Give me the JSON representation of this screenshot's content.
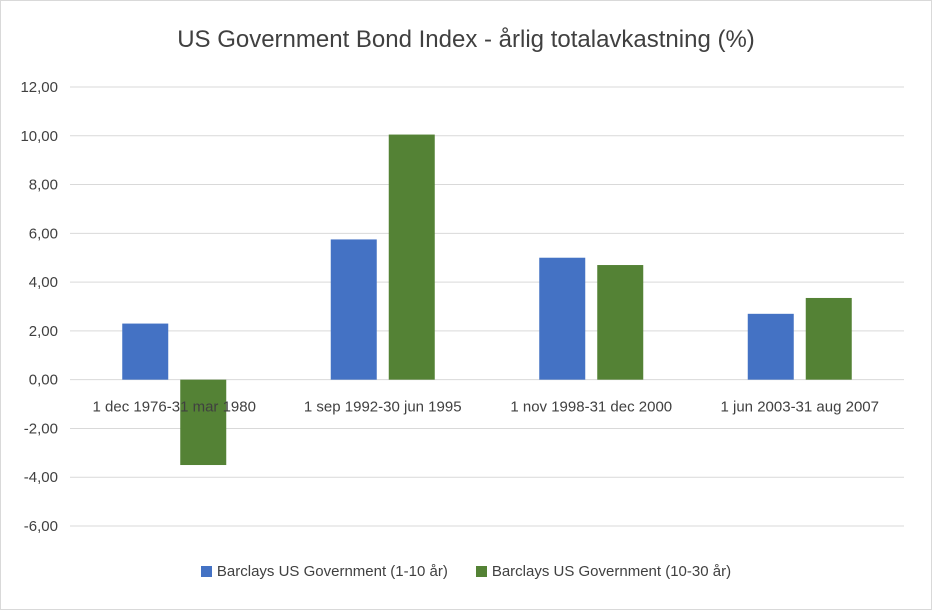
{
  "chart_data": {
    "type": "bar",
    "title": "US Government Bond Index - årlig totalavkastning (%)",
    "categories": [
      "1 dec 1976-31 mar 1980",
      "1 sep 1992-30 jun 1995",
      "1 nov 1998-31 dec 2000",
      "1 jun 2003-31 aug 2007"
    ],
    "series": [
      {
        "name": "Barclays US Government (1-10 år)",
        "values": [
          2.3,
          5.75,
          5.0,
          2.7
        ],
        "color": "#4472c4"
      },
      {
        "name": "Barclays US Government (10-30 år)",
        "values": [
          -3.5,
          10.05,
          4.7,
          3.35
        ],
        "color": "#548235"
      }
    ],
    "ylim": [
      -6,
      12
    ],
    "yticks": [
      "12,00",
      "10,00",
      "8,00",
      "6,00",
      "4,00",
      "2,00",
      "0,00",
      "-2,00",
      "-4,00",
      "-6,00"
    ],
    "ytick_values": [
      12,
      10,
      8,
      6,
      4,
      2,
      0,
      -2,
      -4,
      -6
    ],
    "grid": true,
    "legend_position": "bottom"
  }
}
